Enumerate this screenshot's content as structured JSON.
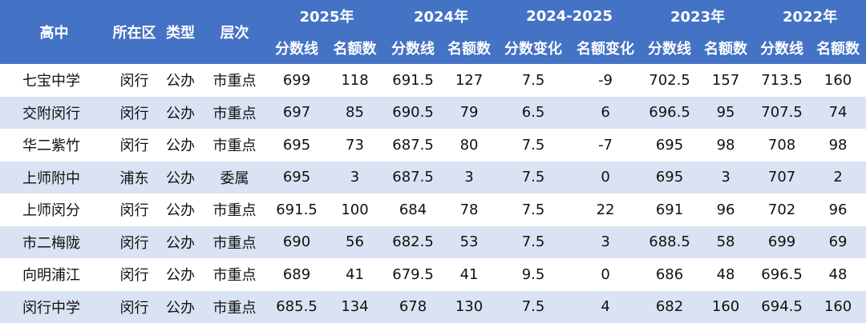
{
  "table": {
    "header_fixed": [
      "高中",
      "所在区",
      "类型",
      "层次"
    ],
    "header_groups": [
      "2025年",
      "2024年",
      "2024-2025",
      "2023年",
      "2022年"
    ],
    "header_sub": [
      "分数线",
      "名额数",
      "分数线",
      "名额数",
      "分数变化",
      "名额变化",
      "分数线",
      "名额数",
      "分数线",
      "名额数"
    ],
    "rows": [
      [
        "七宝中学",
        "闵行",
        "公办",
        "市重点",
        699,
        118,
        691.5,
        127,
        7.5,
        -9,
        702.5,
        157,
        713.5,
        160
      ],
      [
        "交附闵行",
        "闵行",
        "公办",
        "市重点",
        697,
        85,
        690.5,
        79,
        6.5,
        6,
        696.5,
        95,
        707.5,
        74
      ],
      [
        "华二紫竹",
        "闵行",
        "公办",
        "市重点",
        695,
        73,
        687.5,
        80,
        7.5,
        -7,
        695,
        98,
        708,
        98
      ],
      [
        "上师附中",
        "浦东",
        "公办",
        "委属",
        695,
        3,
        687.5,
        3,
        7.5,
        0,
        695,
        3,
        707,
        2
      ],
      [
        "上师闵分",
        "闵行",
        "公办",
        "市重点",
        691.5,
        100,
        684,
        78,
        7.5,
        22,
        691,
        96,
        702,
        96
      ],
      [
        "市二梅陇",
        "闵行",
        "公办",
        "市重点",
        690,
        56,
        682.5,
        53,
        7.5,
        3,
        688.5,
        58,
        699,
        69
      ],
      [
        "向明浦江",
        "闵行",
        "公办",
        "市重点",
        689,
        41,
        679.5,
        41,
        9.5,
        0,
        686,
        48,
        696.5,
        48
      ],
      [
        "闵行中学",
        "闵行",
        "公办",
        "市重点",
        685.5,
        134,
        678,
        130,
        7.5,
        4,
        682,
        160,
        694.5,
        160
      ]
    ]
  }
}
